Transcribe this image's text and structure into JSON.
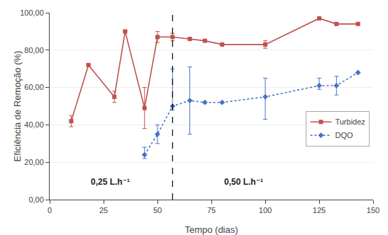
{
  "chart_data": {
    "type": "line",
    "xlabel": "Tempo (dias)",
    "ylabel": "Eficiência de Remoção (%)",
    "xlim": [
      0,
      150
    ],
    "ylim": [
      0,
      100
    ],
    "xticks": [
      0,
      25,
      50,
      75,
      100,
      125,
      150
    ],
    "yticks": [
      {
        "value": 0,
        "label": "0,00"
      },
      {
        "value": 20,
        "label": "20,00"
      },
      {
        "value": 40,
        "label": "40,00"
      },
      {
        "value": 60,
        "label": "60,00"
      },
      {
        "value": 80,
        "label": "80,00"
      },
      {
        "value": 100,
        "label": "100,00"
      }
    ],
    "grid": true,
    "legend": "right",
    "series": [
      {
        "name": "Turbidez",
        "color": "#c0504d",
        "marker": "square",
        "line_style": "solid",
        "x": [
          10,
          18,
          30,
          35,
          44,
          50,
          57,
          65,
          72,
          80,
          100,
          125,
          133,
          143
        ],
        "values": [
          42,
          72,
          55,
          90,
          49,
          87,
          87,
          86,
          85,
          83,
          83,
          97,
          94,
          94
        ],
        "error_low": [
          3,
          0,
          3,
          0,
          11,
          3,
          2,
          0,
          0,
          0,
          2,
          0,
          0,
          0
        ],
        "error_high": [
          3,
          0,
          3,
          0,
          11,
          3,
          2,
          0,
          0,
          0,
          2,
          0,
          0,
          0
        ]
      },
      {
        "name": "DQO",
        "color": "#4472c4",
        "marker": "diamond",
        "line_style": "dotted",
        "x": [
          44,
          50,
          57,
          65,
          72,
          80,
          100,
          125,
          133,
          143
        ],
        "values": [
          24,
          35,
          50,
          53,
          52,
          52,
          55,
          61,
          61,
          68
        ],
        "error_low": [
          2,
          5,
          2,
          18,
          0,
          0,
          12,
          2,
          5,
          0
        ],
        "error_high": [
          4,
          5,
          20,
          18,
          0,
          0,
          10,
          4,
          5,
          0
        ]
      }
    ],
    "vline": {
      "x": 57,
      "color": "#000000",
      "line_style": "dashed"
    },
    "annotations": [
      {
        "text": "0,25 L.h⁻¹",
        "x": 28,
        "y": 6
      },
      {
        "text": "0,50 L.h⁻¹",
        "x": 90,
        "y": 6
      }
    ]
  }
}
